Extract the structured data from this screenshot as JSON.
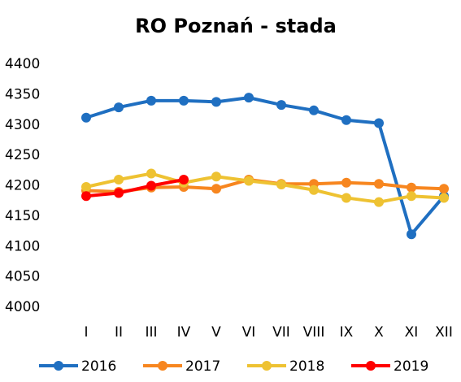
{
  "chart_data": {
    "type": "line",
    "title": "RO Poznań - stada",
    "categories": [
      "I",
      "II",
      "III",
      "IV",
      "V",
      "VI",
      "VII",
      "VIII",
      "IX",
      "X",
      "XI",
      "XII"
    ],
    "series": [
      {
        "name": "2016",
        "color": "#1f6fc1",
        "values": [
          4312,
          4329,
          4340,
          4340,
          4338,
          4345,
          4333,
          4324,
          4308,
          4303,
          4120,
          4183
        ]
      },
      {
        "name": "2017",
        "color": "#f7861f",
        "values": [
          4192,
          4190,
          4197,
          4198,
          4195,
          4210,
          4203,
          4203,
          4205,
          4203,
          4197,
          4195
        ]
      },
      {
        "name": "2018",
        "color": "#eec232",
        "values": [
          4198,
          4210,
          4220,
          4205,
          4215,
          4208,
          4202,
          4193,
          4180,
          4173,
          4183,
          4180
        ]
      },
      {
        "name": "2019",
        "color": "#ff0000",
        "values": [
          4183,
          4188,
          4200,
          4210,
          null,
          null,
          null,
          null,
          null,
          null,
          null,
          null
        ]
      }
    ],
    "ylim": [
      4000,
      4400
    ],
    "yticks": [
      4000,
      4050,
      4100,
      4150,
      4200,
      4250,
      4300,
      4350,
      4400
    ],
    "grid": false,
    "legend": "bottom"
  }
}
